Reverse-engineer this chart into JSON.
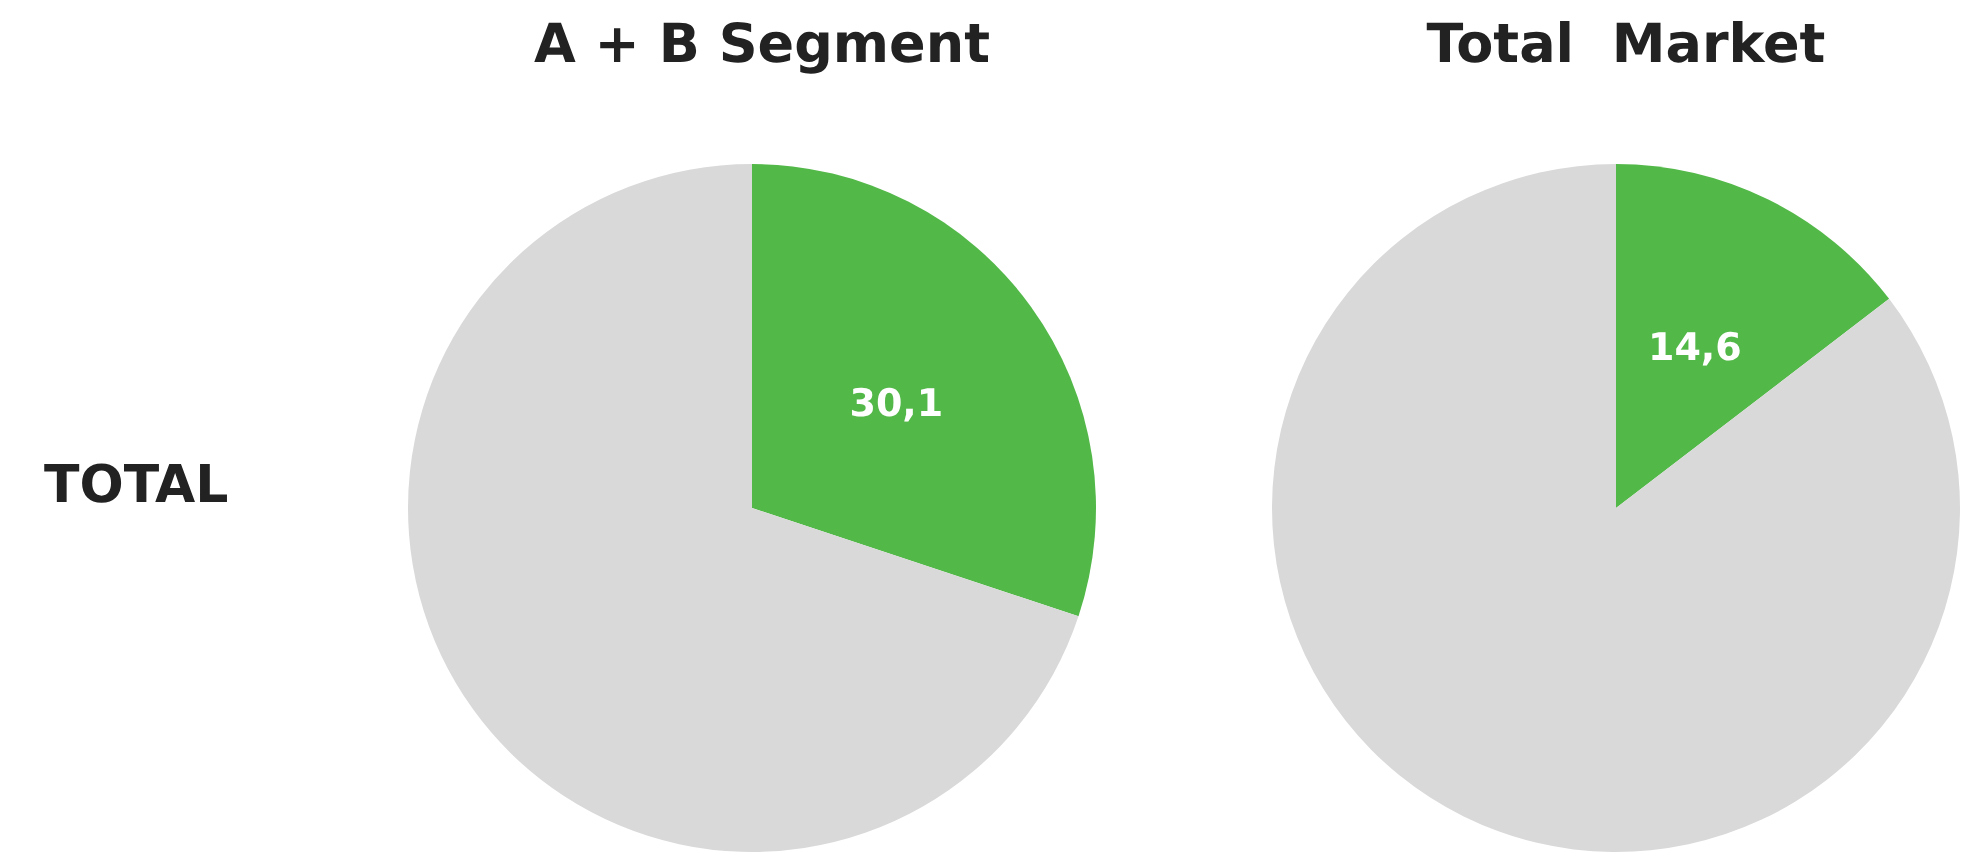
{
  "chart_data": [
    {
      "type": "pie",
      "title": "A + B Segment",
      "categories": [
        null,
        null
      ],
      "values": [
        30.1,
        69.9
      ],
      "colors": [
        "#52b848",
        "#d9d9d9"
      ],
      "value_labels": [
        "30,1",
        null
      ],
      "annotations": [
        "TOTAL"
      ]
    },
    {
      "type": "pie",
      "title": "Total  Market",
      "categories": [
        null,
        null
      ],
      "values": [
        14.6,
        85.4
      ],
      "colors": [
        "#52b848",
        "#d9d9d9"
      ],
      "value_labels": [
        "14,6",
        null
      ]
    }
  ]
}
